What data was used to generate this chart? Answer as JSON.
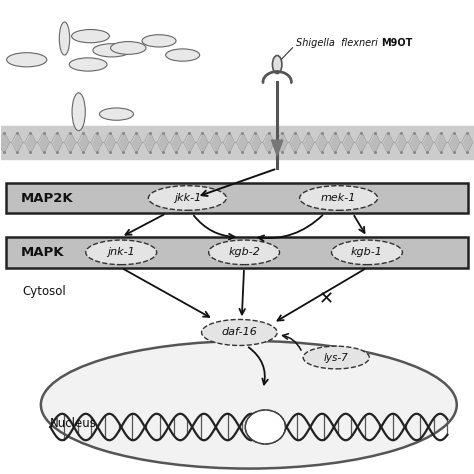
{
  "shigella_italic": "Shigella  flexneri",
  "shigella_bold": "M9OT",
  "map2k_label": "MAP2K",
  "mapk_label": "MAPK",
  "cytosol_label": "Cytosol",
  "nucleus_label": "Nucleus",
  "jkk1_label": "jkk-1",
  "mek1_label": "mek-1",
  "jnk1_label": "jnk-1",
  "kgb2_label": "kgb-2",
  "kgb1_label": "kgb-1",
  "daf16_label": "daf-16",
  "lys7_label": "lys-7",
  "bg_color": "#ffffff",
  "membrane_fill": "#d4d4d4",
  "box_fill": "#c8c8c8",
  "box_edge": "#222222",
  "ellipse_fill": "#e4e4e4",
  "ellipse_edge": "#333333",
  "bacteria_fill": "#e8e8e8",
  "bacteria_edge": "#666666",
  "arrow_color": "#111111",
  "dna_color": "#222222"
}
